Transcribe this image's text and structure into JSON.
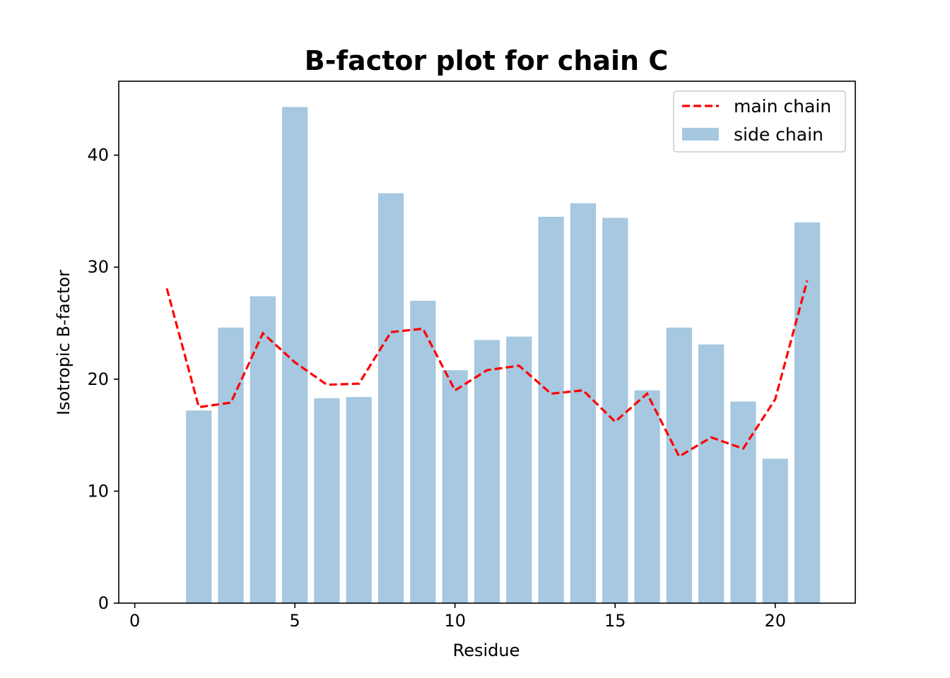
{
  "chart_data": {
    "type": "bar",
    "title": "B-factor plot for chain C",
    "xlabel": "Residue",
    "ylabel": "Isotropic B-factor",
    "xlim": [
      -0.5,
      22.5
    ],
    "ylim": [
      0,
      46.6
    ],
    "xticks": [
      0,
      5,
      10,
      15,
      20
    ],
    "yticks": [
      0,
      10,
      20,
      30,
      40
    ],
    "grid": false,
    "legend_position": "top-right",
    "colors": {
      "side_chain": "#a6c8e0",
      "main_chain": "#ff0000"
    },
    "series": [
      {
        "name": "main chain",
        "kind": "line",
        "style": "dashed",
        "x": [
          1,
          2,
          3,
          4,
          5,
          6,
          7,
          8,
          9,
          10,
          11,
          12,
          13,
          14,
          15,
          16,
          17,
          18,
          19,
          20,
          21
        ],
        "values": [
          28.1,
          17.5,
          17.9,
          24.1,
          21.5,
          19.5,
          19.6,
          24.2,
          24.5,
          19.0,
          20.8,
          21.2,
          18.7,
          19.0,
          16.2,
          18.7,
          13.1,
          14.8,
          13.8,
          18.2,
          28.8
        ]
      },
      {
        "name": "side chain",
        "kind": "bar",
        "x": [
          1,
          2,
          3,
          4,
          5,
          6,
          7,
          8,
          9,
          10,
          11,
          12,
          13,
          14,
          15,
          16,
          17,
          18,
          19,
          20,
          21
        ],
        "values": [
          0,
          17.2,
          24.6,
          27.4,
          44.3,
          18.3,
          18.4,
          36.6,
          27.0,
          20.8,
          23.5,
          23.8,
          34.5,
          35.7,
          34.4,
          19.0,
          24.6,
          23.1,
          18.0,
          12.9,
          34.0
        ]
      }
    ]
  }
}
